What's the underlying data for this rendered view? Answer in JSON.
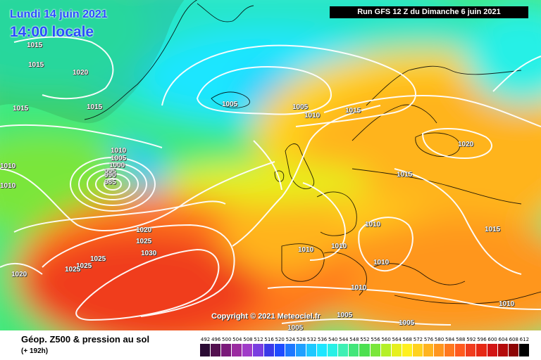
{
  "header": {
    "date_line1": "Lundi 14 juin 2021",
    "date_line2": "14:00 locale",
    "run_label": "Run GFS 12 Z du Dimanche 6 juin 2021"
  },
  "map": {
    "copyright": "Copyright © 2021 Meteociel.fr",
    "isobar_labels": [
      {
        "t": "1015"
      },
      {
        "t": "1015"
      },
      {
        "t": "1020"
      },
      {
        "t": "1015"
      },
      {
        "t": "1015"
      },
      {
        "t": "1005"
      },
      {
        "t": "1005"
      },
      {
        "t": "1010"
      },
      {
        "t": "1015"
      },
      {
        "t": "1020"
      },
      {
        "t": "1010"
      },
      {
        "t": "1005"
      },
      {
        "t": "1000"
      },
      {
        "t": "995"
      },
      {
        "t": "990"
      },
      {
        "t": "985"
      },
      {
        "t": "1010"
      },
      {
        "t": "1010"
      },
      {
        "t": "1015"
      },
      {
        "t": "1020"
      },
      {
        "t": "1025"
      },
      {
        "t": "1030"
      },
      {
        "t": "1025"
      },
      {
        "t": "1025"
      },
      {
        "t": "1025"
      },
      {
        "t": "1020"
      },
      {
        "t": "1010"
      },
      {
        "t": "1010"
      },
      {
        "t": "1010"
      },
      {
        "t": "1015"
      },
      {
        "t": "1010"
      },
      {
        "t": "1010"
      },
      {
        "t": "1010"
      },
      {
        "t": "1005"
      },
      {
        "t": "1005"
      },
      {
        "t": "1005"
      }
    ]
  },
  "footer": {
    "title": "Géop. Z500 & pression au sol",
    "subtitle": "(+ 192h)"
  },
  "legend": {
    "ticks": [
      "492",
      "496",
      "500",
      "504",
      "508",
      "512",
      "516",
      "520",
      "524",
      "528",
      "532",
      "536",
      "540",
      "544",
      "548",
      "552",
      "556",
      "560",
      "564",
      "568",
      "572",
      "576",
      "580",
      "584",
      "588",
      "592",
      "596",
      "600",
      "604",
      "608",
      "612"
    ],
    "colors": [
      "#2a0a33",
      "#52104f",
      "#7a1a7a",
      "#9a2ba0",
      "#a03cc8",
      "#7a3ee0",
      "#3a3ae8",
      "#1f4cff",
      "#1e78ff",
      "#1fa0ff",
      "#1ec8ff",
      "#1ee6ff",
      "#28f0e6",
      "#3ef0b4",
      "#42e67a",
      "#4ce050",
      "#7ae63a",
      "#b4f028",
      "#e6f01e",
      "#fff01e",
      "#ffd21e",
      "#ffb41e",
      "#ff961e",
      "#ff781e",
      "#ff5a1e",
      "#f03c1e",
      "#e62814",
      "#d21414",
      "#b40a0a",
      "#8c0505",
      "#000000"
    ]
  },
  "colors": {
    "label_blue": "#2a4cff",
    "run_bg": "#000000"
  }
}
